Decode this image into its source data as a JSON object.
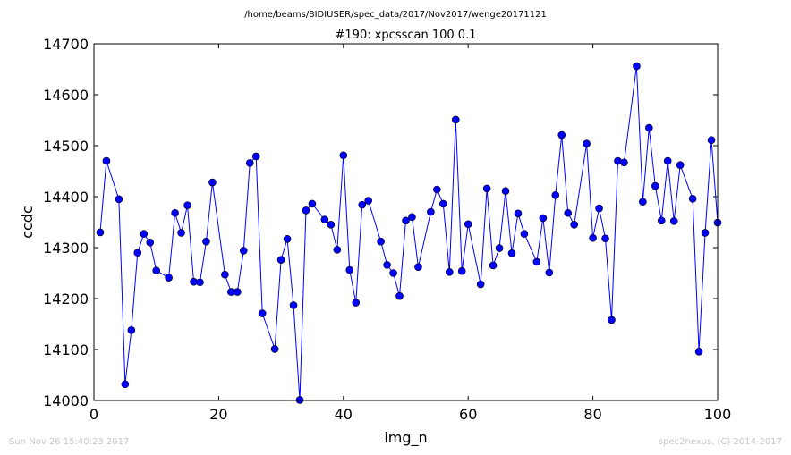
{
  "figure": {
    "file_path": "/home/beams/8IDIUSER/spec_data/2017/Nov2017/wenge20171121",
    "footer_left": "Sun Nov 26 15:40:23 2017",
    "footer_right": "spec2nexus, (C) 2014-2017"
  },
  "colors": {
    "series": "#0000ff",
    "axes": "#000000",
    "background": "#ffffff",
    "footer": "#c8c8c8"
  },
  "chart_data": {
    "type": "line",
    "title": "#190: xpcsscan 100 0.1",
    "xlabel": "img_n",
    "ylabel": "ccdc",
    "xlim": [
      0,
      100
    ],
    "ylim": [
      14000,
      14700
    ],
    "xticks": [
      0,
      20,
      40,
      60,
      80,
      100
    ],
    "yticks": [
      14000,
      14100,
      14200,
      14300,
      14400,
      14500,
      14600,
      14700
    ],
    "grid": false,
    "legend": "none",
    "markers": "circle",
    "series": [
      {
        "x": [
          1,
          2,
          4,
          5,
          6,
          7,
          8,
          9,
          10,
          12,
          13,
          14,
          15,
          16,
          17,
          18,
          19,
          21,
          22,
          23,
          24,
          25,
          26,
          27,
          29,
          30,
          31,
          32,
          33,
          34,
          35,
          37,
          38,
          39,
          40,
          41,
          42,
          43,
          44,
          46,
          47,
          48,
          49,
          50,
          51,
          52,
          54,
          55,
          56,
          57,
          58,
          59,
          60,
          62,
          63,
          64,
          65,
          66,
          67,
          68,
          69,
          71,
          72,
          73,
          74,
          75,
          76,
          77,
          79,
          80,
          81,
          82,
          83,
          84,
          85,
          87,
          88,
          89,
          90,
          91,
          92,
          93,
          94,
          96,
          97,
          98,
          99,
          100
        ],
        "y": [
          14330,
          14470,
          14395,
          14032,
          14138,
          14290,
          14327,
          14310,
          14255,
          14241,
          14368,
          14329,
          14383,
          14233,
          14232,
          14312,
          14428,
          14247,
          14213,
          14213,
          14294,
          14466,
          14479,
          14171,
          14101,
          14276,
          14317,
          14187,
          14001,
          14373,
          14386,
          14355,
          14345,
          14296,
          14481,
          14256,
          14192,
          14384,
          14392,
          14312,
          14266,
          14250,
          14205,
          14353,
          14360,
          14262,
          14370,
          14414,
          14386,
          14252,
          14551,
          14254,
          14346,
          14228,
          14416,
          14265,
          14299,
          14411,
          14289,
          14367,
          14327,
          14272,
          14358,
          14251,
          14403,
          14521,
          14368,
          14345,
          14504,
          14319,
          14377,
          14318,
          14158,
          14470,
          14467,
          14656,
          14390,
          14535,
          14421,
          14353,
          14470,
          14352,
          14462,
          14396,
          14096,
          14329,
          14511,
          14349
        ]
      }
    ]
  }
}
